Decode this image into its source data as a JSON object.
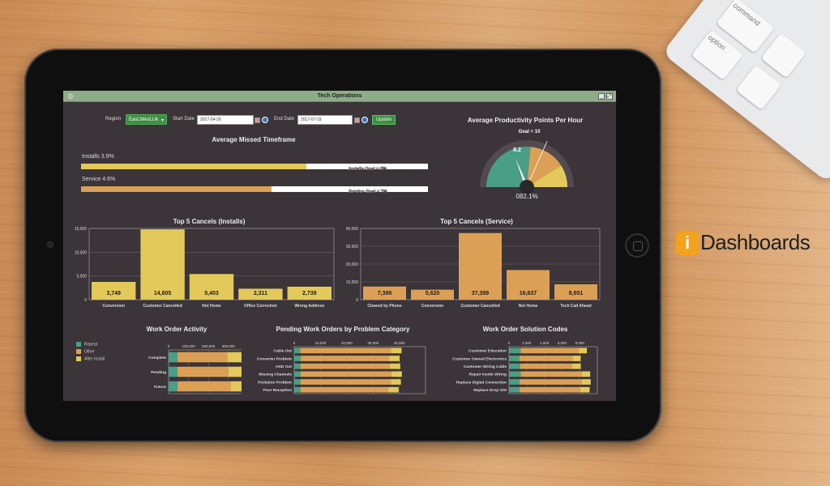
{
  "window": {
    "title": "Tech Operations"
  },
  "controls": {
    "region_label": "Region",
    "region_value": "East,West,Uk",
    "start_label": "Start Date",
    "start_value": "2017-04-29",
    "end_label": "End Date",
    "end_value": "2017-07-19",
    "update_label": "Update"
  },
  "missed": {
    "title": "Average Missed Timeframe",
    "bars": [
      {
        "label": "Installs  3.9%",
        "fill_percent": 65,
        "goal": "Installs Goal = 5%",
        "color": "#e2c95a"
      },
      {
        "label": "Service  4.6%",
        "fill_percent": 55,
        "goal": "Service Goal = 7%",
        "color": "#dba055"
      }
    ]
  },
  "gauge": {
    "title": "Average Productivity Points Per Hour",
    "goal_label": "Goal = 10",
    "value_label": "8.2",
    "value": 8.2,
    "goal": 10,
    "readout": "082.1%",
    "colors": [
      "#4a9e86",
      "#dba055",
      "#e2c95a"
    ]
  },
  "brand": {
    "logo_text": "iDashboards"
  },
  "keyboard": {
    "keys": [
      "command",
      "option"
    ]
  },
  "chart_data": [
    {
      "type": "bar",
      "title": "Top 5 Cancels (Installs)",
      "categories": [
        "Conversion",
        "Customer Cancelled",
        "Not Home",
        "Office Correction",
        "Wrong Address"
      ],
      "values": [
        3749,
        14805,
        5403,
        2311,
        2739
      ],
      "value_labels": [
        "3,749",
        "14,805",
        "5,403",
        "2,311",
        "2,739"
      ],
      "ylim": [
        0,
        15000
      ],
      "yticks": [
        "0",
        "5,000",
        "10,000",
        "15,000"
      ],
      "color": "#e2c95a",
      "grid": true
    },
    {
      "type": "bar",
      "title": "Top 5 Cancels (Service)",
      "categories": [
        "Cleared by Phone",
        "Conversion",
        "Customer Cancelled",
        "Not Home",
        "Tech Call Ahead"
      ],
      "values": [
        7398,
        5620,
        37399,
        16637,
        8651
      ],
      "value_labels": [
        "7,398",
        "5,620",
        "37,399",
        "16,637",
        "8,651"
      ],
      "ylim": [
        0,
        40000
      ],
      "yticks": [
        "0",
        "10,000",
        "20,000",
        "30,000",
        "40,000"
      ],
      "color": "#dba055",
      "grid": true
    },
    {
      "type": "bar",
      "orientation": "horizontal",
      "stacked": true,
      "title": "Work Order Activity",
      "categories": [
        "Complete",
        "Pending",
        "Future"
      ],
      "series": [
        {
          "name": "Repeat",
          "values": [
            45000,
            45000,
            45000
          ],
          "color": "#4a9e86"
        },
        {
          "name": "Other",
          "values": [
            250000,
            255000,
            268000
          ],
          "color": "#dba055"
        },
        {
          "name": "After Install",
          "values": [
            117000,
            118000,
            115000
          ],
          "color": "#e2c95a"
        }
      ],
      "xlim": [
        0,
        500000
      ],
      "xticks": [
        "0",
        "100,000",
        "200,000",
        "300,000",
        "400,000"
      ],
      "legend": "left",
      "grid": true
    },
    {
      "type": "bar",
      "orientation": "horizontal",
      "stacked": true,
      "title": "Pending Work Orders by Problem Category",
      "categories": [
        "Cable Out",
        "Converter Problem",
        "HSD Out",
        "Missing Channels",
        "Pixilation Problem",
        "Poor Reception"
      ],
      "series": [
        {
          "values": [
            1800,
            2000,
            1900,
            1900,
            1900,
            1900
          ],
          "color": "#4a9e86"
        },
        {
          "values": [
            27700,
            26800,
            27200,
            27700,
            27500,
            26700
          ],
          "color": "#dba055"
        },
        {
          "values": [
            3200,
            3300,
            3200,
            3200,
            3100,
            3200
          ],
          "color": "#e2c95a"
        }
      ],
      "xlim": [
        0,
        40000
      ],
      "xticks": [
        "0",
        "10,000",
        "20,000",
        "30,000",
        "40,000"
      ],
      "grid": true
    },
    {
      "type": "bar",
      "orientation": "horizontal",
      "stacked": true,
      "title": "Work Order Solution Codes",
      "categories": [
        "Customer Education",
        "Customer Owned Electronics",
        "Customer Wiring Cable",
        "Repair Inside Wiring",
        "Replace Digital Connection",
        "Replace Drop O/H"
      ],
      "series": [
        {
          "values": [
            1050,
            950,
            1000,
            1050,
            950,
            950
          ],
          "color": "#4a9e86"
        },
        {
          "values": [
            5300,
            4800,
            4700,
            5500,
            5650,
            5500
          ],
          "color": "#dba055"
        },
        {
          "values": [
            700,
            740,
            800,
            800,
            800,
            850
          ],
          "color": "#e2c95a"
        }
      ],
      "xlim": [
        0,
        8000
      ],
      "xticks": [
        "0",
        "2,000",
        "4,000",
        "6,000",
        "8,000"
      ],
      "grid": true
    }
  ]
}
